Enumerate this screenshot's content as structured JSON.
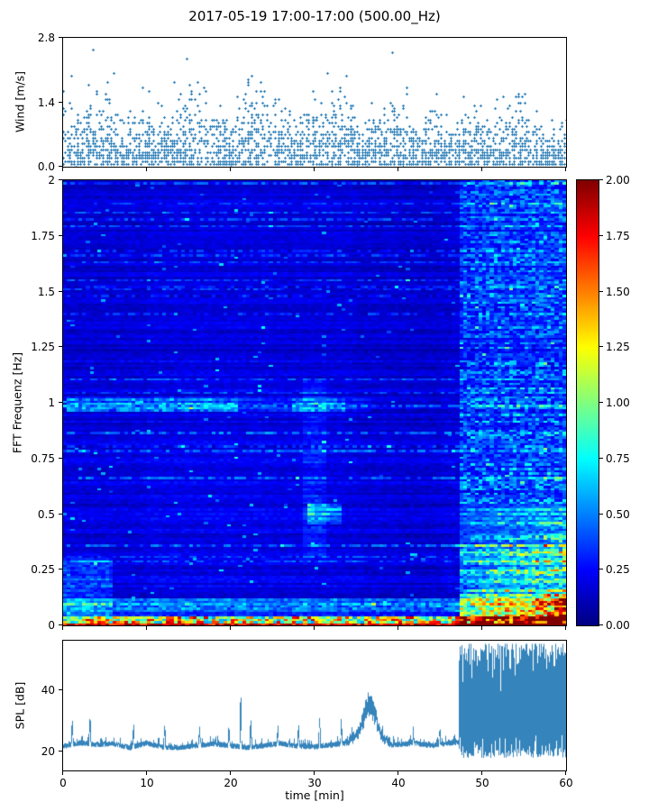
{
  "title": "2017-05-19 17:00-17:00 (500.00_Hz)",
  "colors": {
    "series": "#1f77b4",
    "frame": "#000000",
    "background": "#ffffff"
  },
  "chart_data": [
    {
      "id": "wind",
      "type": "scatter",
      "ylabel": "Wind [m/s]",
      "xlim": [
        0,
        60
      ],
      "ylim": [
        0,
        2.8
      ],
      "yticks": [
        {
          "v": 0.0,
          "label": "0.0"
        },
        {
          "v": 1.4,
          "label": "1.4"
        },
        {
          "v": 2.8,
          "label": "2.8"
        }
      ],
      "marker_color": "#1f77b4",
      "marker": "plus",
      "n_points": 2600,
      "y_typical_range": [
        0.05,
        1.5
      ],
      "y_max_observed": 2.75,
      "grid": false
    },
    {
      "id": "spectrogram",
      "type": "heatmap",
      "ylabel": "FFT Frequenz [Hz]",
      "xlim": [
        0,
        60
      ],
      "ylim": [
        0,
        2
      ],
      "yticks": [
        {
          "v": 0,
          "label": "0"
        },
        {
          "v": 0.25,
          "label": "0.25"
        },
        {
          "v": 0.5,
          "label": "0.5"
        },
        {
          "v": 0.75,
          "label": "0.75"
        },
        {
          "v": 1,
          "label": "1"
        },
        {
          "v": 1.25,
          "label": "1.25"
        },
        {
          "v": 1.5,
          "label": "1.5"
        },
        {
          "v": 1.75,
          "label": "1.75"
        },
        {
          "v": 2,
          "label": "2"
        }
      ],
      "colormap": "jet",
      "clim": [
        0,
        2
      ],
      "colorbar_ticks": [
        {
          "v": 0,
          "label": "0.00"
        },
        {
          "v": 0.25,
          "label": "0.25"
        },
        {
          "v": 0.5,
          "label": "0.50"
        },
        {
          "v": 0.75,
          "label": "0.75"
        },
        {
          "v": 1,
          "label": "1.00"
        },
        {
          "v": 1.25,
          "label": "1.25"
        },
        {
          "v": 1.5,
          "label": "1.50"
        },
        {
          "v": 1.75,
          "label": "1.75"
        },
        {
          "v": 2,
          "label": "2.00"
        }
      ],
      "background_level": 0.18,
      "features": [
        {
          "name": "tonal-band-1hz",
          "t": [
            0,
            37
          ],
          "f": [
            0.96,
            1.03
          ],
          "boost": 0.5,
          "segments": [
            [
              0.3,
              21,
              1.0
            ],
            [
              21,
              27.5,
              0.4
            ],
            [
              27.5,
              33.5,
              0.95
            ],
            [
              33.5,
              37,
              0.35
            ]
          ]
        },
        {
          "name": "bottom-hum-band",
          "t": [
            0,
            60
          ],
          "f": [
            0,
            0.04
          ],
          "boost": 1.3
        },
        {
          "name": "low-freq-noise",
          "t": [
            0,
            60
          ],
          "f": [
            0.04,
            0.12
          ],
          "boost": 0.42
        },
        {
          "name": "start-low-freq",
          "t": [
            0,
            6
          ],
          "f": [
            0.04,
            0.3
          ],
          "boost": 0.3
        },
        {
          "name": "patch-05hz-30min",
          "t": [
            29,
            33
          ],
          "f": [
            0.45,
            0.55
          ],
          "boost": 0.5
        },
        {
          "name": "event-around-30min",
          "t": [
            28.5,
            31.5
          ],
          "f": [
            0.3,
            1.1
          ],
          "boost": 0.16
        },
        {
          "name": "storm-low",
          "t": [
            47.2,
            60
          ],
          "f": [
            0,
            0.55
          ],
          "boost": 1.25
        },
        {
          "name": "storm-mid",
          "t": [
            47.2,
            60
          ],
          "f": [
            0.55,
            1.2
          ],
          "boost": 0.55
        },
        {
          "name": "storm-high",
          "t": [
            47.2,
            60
          ],
          "f": [
            1.2,
            2
          ],
          "boost": 0.42
        }
      ]
    },
    {
      "id": "spl",
      "type": "line",
      "ylabel": "SPL [dB]",
      "xlabel": "time [min]",
      "xlim": [
        0,
        60
      ],
      "ylim": [
        14,
        56
      ],
      "yticks": [
        {
          "v": 20,
          "label": "20"
        },
        {
          "v": 40,
          "label": "40"
        }
      ],
      "xticks": [
        {
          "v": 0,
          "label": "0"
        },
        {
          "v": 10,
          "label": "10"
        },
        {
          "v": 20,
          "label": "20"
        },
        {
          "v": 30,
          "label": "30"
        },
        {
          "v": 40,
          "label": "40"
        },
        {
          "v": 50,
          "label": "50"
        },
        {
          "v": 60,
          "label": "60"
        }
      ],
      "line_color": "#1f77b4",
      "baseline_db": 22.3,
      "bump": {
        "t": 36.6,
        "height_db": 12,
        "width_min": 1.1
      },
      "spikes": [
        {
          "t": 1.1,
          "h": 7
        },
        {
          "t": 3.2,
          "h": 9
        },
        {
          "t": 8.4,
          "h": 6
        },
        {
          "t": 12.1,
          "h": 8
        },
        {
          "t": 16.3,
          "h": 6
        },
        {
          "t": 19.8,
          "h": 6
        },
        {
          "t": 21.2,
          "h": 14
        },
        {
          "t": 22.4,
          "h": 7
        },
        {
          "t": 25.6,
          "h": 6
        },
        {
          "t": 28.1,
          "h": 6
        },
        {
          "t": 30.6,
          "h": 10
        },
        {
          "t": 33.2,
          "h": 8
        },
        {
          "t": 41.8,
          "h": 6
        },
        {
          "t": 44.9,
          "h": 5
        }
      ],
      "storm": {
        "t_start": 47.2,
        "t_end": 60,
        "min_db": 18,
        "max_db": 55
      }
    }
  ]
}
